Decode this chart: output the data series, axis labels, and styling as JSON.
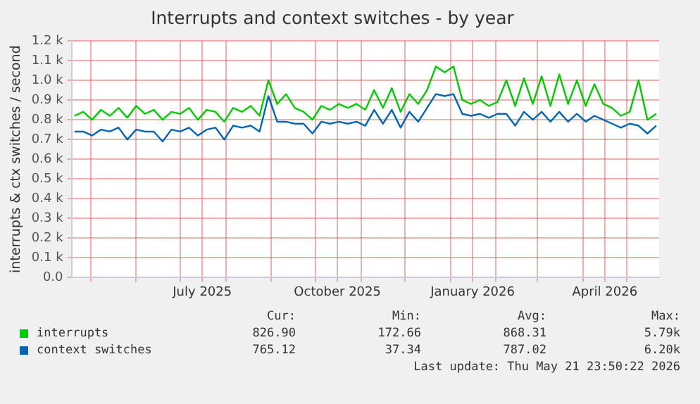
{
  "chart_data": {
    "type": "line",
    "title": "Interrupts and context switches - by year",
    "ylabel": "interrupts & ctx switches / second",
    "x": [
      "2025-04-20",
      "2025-04-26",
      "2025-05-02",
      "2025-05-08",
      "2025-05-14",
      "2025-05-20",
      "2025-05-26",
      "2025-06-01",
      "2025-06-07",
      "2025-06-13",
      "2025-06-19",
      "2025-06-25",
      "2025-07-01",
      "2025-07-07",
      "2025-07-13",
      "2025-07-19",
      "2025-07-25",
      "2025-07-31",
      "2025-08-06",
      "2025-08-12",
      "2025-08-18",
      "2025-08-24",
      "2025-08-30",
      "2025-09-05",
      "2025-09-11",
      "2025-09-17",
      "2025-09-23",
      "2025-09-29",
      "2025-10-05",
      "2025-10-11",
      "2025-10-17",
      "2025-10-23",
      "2025-10-29",
      "2025-11-04",
      "2025-11-10",
      "2025-11-16",
      "2025-11-22",
      "2025-11-28",
      "2025-12-04",
      "2025-12-10",
      "2025-12-16",
      "2025-12-22",
      "2025-12-28",
      "2026-01-03",
      "2026-01-09",
      "2026-01-15",
      "2026-01-21",
      "2026-01-27",
      "2026-02-02",
      "2026-02-08",
      "2026-02-14",
      "2026-02-20",
      "2026-02-26",
      "2026-03-04",
      "2026-03-10",
      "2026-03-16",
      "2026-03-22",
      "2026-03-28",
      "2026-04-03",
      "2026-04-09",
      "2026-04-15",
      "2026-04-21",
      "2026-04-27",
      "2026-05-03",
      "2026-05-09",
      "2026-05-15",
      "2026-05-21"
    ],
    "series": [
      {
        "name": "interrupts",
        "color": "#00cc00",
        "values": [
          820,
          840,
          800,
          850,
          820,
          860,
          810,
          870,
          830,
          850,
          800,
          840,
          830,
          860,
          800,
          850,
          840,
          790,
          860,
          840,
          870,
          820,
          1000,
          880,
          930,
          860,
          840,
          800,
          870,
          850,
          880,
          860,
          880,
          850,
          950,
          860,
          960,
          840,
          930,
          880,
          950,
          1070,
          1040,
          1070,
          900,
          880,
          900,
          870,
          890,
          1000,
          870,
          1010,
          880,
          1020,
          870,
          1030,
          880,
          1000,
          870,
          980,
          880,
          860,
          820,
          840,
          1000,
          800,
          830
        ]
      },
      {
        "name": "context switches",
        "color": "#0066b3",
        "values": [
          740,
          740,
          720,
          750,
          740,
          760,
          700,
          750,
          740,
          740,
          690,
          750,
          740,
          760,
          720,
          750,
          760,
          700,
          770,
          760,
          770,
          740,
          920,
          790,
          790,
          780,
          780,
          730,
          790,
          780,
          790,
          780,
          790,
          770,
          850,
          780,
          850,
          760,
          840,
          790,
          860,
          930,
          920,
          930,
          830,
          820,
          830,
          810,
          830,
          830,
          770,
          840,
          800,
          840,
          790,
          840,
          790,
          830,
          790,
          820,
          800,
          780,
          760,
          780,
          770,
          730,
          770
        ]
      }
    ],
    "xlim": [
      "2025-04-18",
      "2026-05-23"
    ],
    "xticks": [
      {
        "value": "2025-05-01",
        "label": null
      },
      {
        "value": "2025-06-01",
        "label": null
      },
      {
        "value": "2025-07-01",
        "label": null
      },
      {
        "value": "2025-07-16",
        "label": "July 2025"
      },
      {
        "value": "2025-08-01",
        "label": null
      },
      {
        "value": "2025-09-01",
        "label": null
      },
      {
        "value": "2025-10-01",
        "label": null
      },
      {
        "value": "2025-10-16",
        "label": "October 2025"
      },
      {
        "value": "2025-11-01",
        "label": null
      },
      {
        "value": "2025-12-01",
        "label": null
      },
      {
        "value": "2026-01-01",
        "label": null
      },
      {
        "value": "2026-01-16",
        "label": "January 2026"
      },
      {
        "value": "2026-02-01",
        "label": null
      },
      {
        "value": "2026-03-01",
        "label": null
      },
      {
        "value": "2026-04-01",
        "label": null
      },
      {
        "value": "2026-04-16",
        "label": "April 2026"
      },
      {
        "value": "2026-05-01",
        "label": null
      }
    ],
    "ylim": [
      0,
      1200
    ],
    "yticks": [
      {
        "value": 0,
        "label": "0.0"
      },
      {
        "value": 100,
        "label": "0.1 k"
      },
      {
        "value": 200,
        "label": "0.2 k"
      },
      {
        "value": 300,
        "label": "0.3 k"
      },
      {
        "value": 400,
        "label": "0.4 k"
      },
      {
        "value": 500,
        "label": "0.5 k"
      },
      {
        "value": 600,
        "label": "0.6 k"
      },
      {
        "value": 700,
        "label": "0.7 k"
      },
      {
        "value": 800,
        "label": "0.8 k"
      },
      {
        "value": 900,
        "label": "0.9 k"
      },
      {
        "value": 1000,
        "label": "1.0 k"
      },
      {
        "value": 1100,
        "label": "1.1 k"
      },
      {
        "value": 1200,
        "label": "1.2 k"
      }
    ],
    "grid": true,
    "legend": "bottom",
    "marker": "none",
    "line_style": "solid",
    "annotations": [
      "Cur:",
      "Min:",
      "Avg:",
      "Max:",
      "826.90",
      "172.66",
      "868.31",
      "5.79k",
      "765.12",
      "37.34",
      "787.02",
      "6.20k",
      "Last update: Thu May 21 23:50:22 2026"
    ]
  }
}
